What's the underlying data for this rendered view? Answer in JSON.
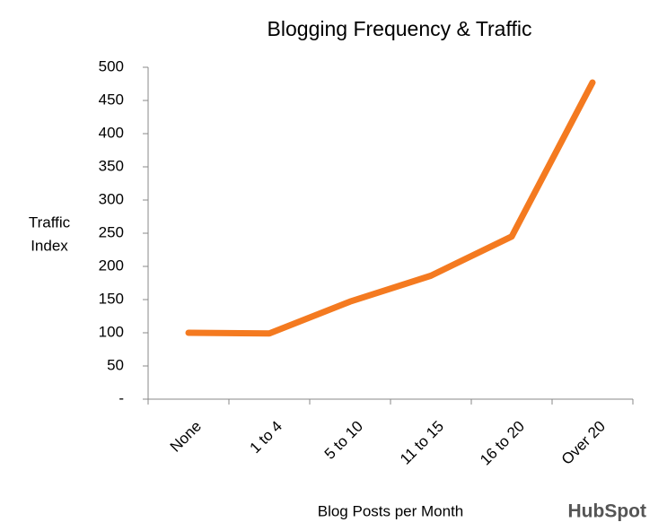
{
  "chart_data": {
    "type": "line",
    "title": "Blogging Frequency & Traffic",
    "x_label": "Blog Posts per Month",
    "y_label": [
      "Traffic",
      "Index"
    ],
    "categories": [
      "None",
      "1 to 4",
      "5 to 10",
      "11 to 15",
      "16 to 20",
      "Over 20"
    ],
    "series": [
      {
        "name": "Traffic Index",
        "color": "#f47a20",
        "values": [
          100,
          99,
          147,
          186,
          245,
          477
        ]
      }
    ],
    "ylim": [
      0,
      500
    ],
    "yticks": [
      {
        "value": 0,
        "label": "-"
      },
      50,
      100,
      150,
      200,
      250,
      300,
      350,
      400,
      450,
      500
    ],
    "grid": false,
    "logo": "HubSpot"
  }
}
